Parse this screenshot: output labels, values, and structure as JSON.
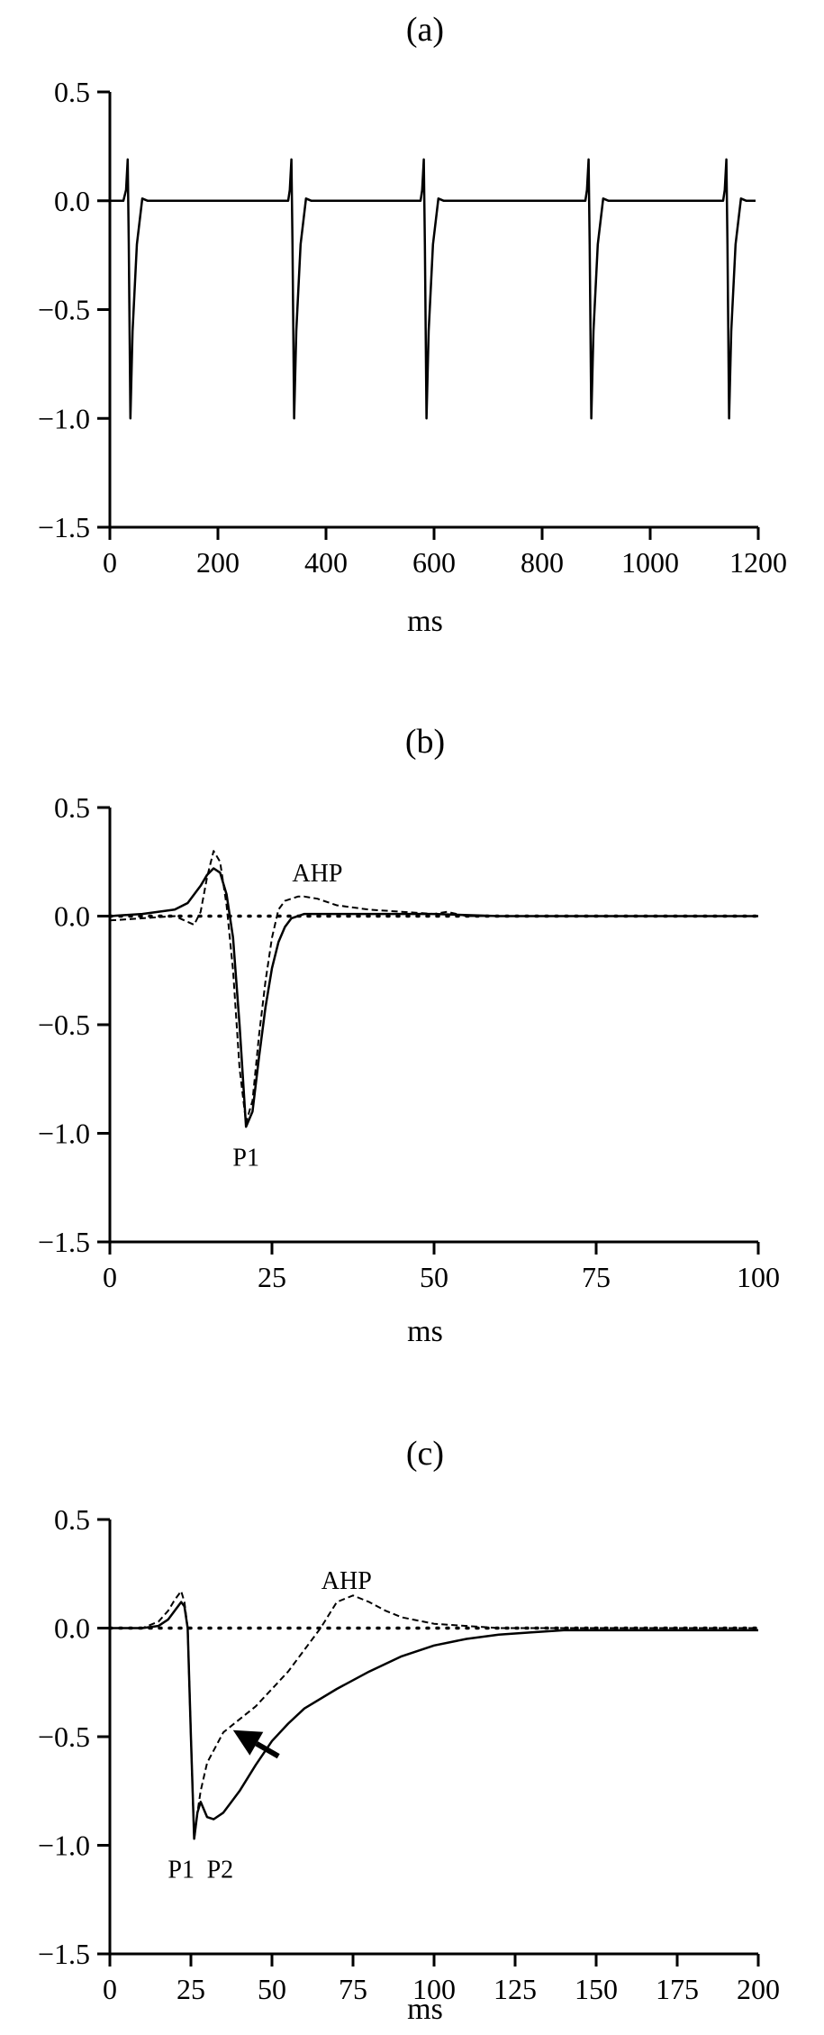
{
  "chart_data": [
    {
      "type": "line",
      "panel_label": "(a)",
      "xlabel": "ms",
      "ylabel": "",
      "xlim": [
        0,
        1200
      ],
      "ylim": [
        -1.5,
        0.5
      ],
      "xticks": [
        0,
        200,
        400,
        600,
        800,
        1000,
        1200
      ],
      "xtick_labels": [
        "0",
        "200",
        "400",
        "600",
        "800",
        "1000",
        "1200"
      ],
      "yticks": [
        0.5,
        0.0,
        -0.5,
        -1.0,
        -1.5
      ],
      "ytick_labels": [
        "0.5",
        "0.0",
        "−0.5",
        "−1.0",
        "−1.5"
      ],
      "grid": false,
      "series": [
        {
          "style": "solid",
          "x": [
            0,
            25,
            30,
            33,
            35,
            38,
            42,
            50,
            60,
            70,
            330,
            333,
            336,
            338,
            341,
            345,
            353,
            363,
            373,
            575,
            578,
            581,
            583,
            586,
            590,
            598,
            608,
            618,
            880,
            883,
            886,
            888,
            891,
            895,
            903,
            913,
            923,
            1135,
            1138,
            1141,
            1143,
            1146,
            1150,
            1158,
            1168,
            1178,
            1195
          ],
          "y": [
            0,
            0,
            0.05,
            0.19,
            -0.2,
            -1.0,
            -0.6,
            -0.2,
            0.01,
            0,
            0,
            0.05,
            0.19,
            -0.2,
            -1.0,
            -0.6,
            -0.2,
            0.01,
            0,
            0,
            0.05,
            0.19,
            -0.2,
            -1.0,
            -0.6,
            -0.2,
            0.01,
            0,
            0,
            0.05,
            0.19,
            -0.2,
            -1.0,
            -0.6,
            -0.2,
            0.01,
            0,
            0,
            0.05,
            0.19,
            -0.2,
            -1.0,
            -0.6,
            -0.2,
            0.01,
            0,
            0
          ]
        }
      ],
      "annotations": []
    },
    {
      "type": "line",
      "panel_label": "(b)",
      "xlabel": "ms",
      "ylabel": "",
      "xlim": [
        0,
        100
      ],
      "ylim": [
        -1.5,
        0.5
      ],
      "xticks": [
        0,
        25,
        50,
        75,
        100
      ],
      "xtick_labels": [
        "0",
        "25",
        "50",
        "75",
        "100"
      ],
      "yticks": [
        0.5,
        0.0,
        -0.5,
        -1.0,
        -1.5
      ],
      "ytick_labels": [
        "0.5",
        "0.0",
        "−0.5",
        "−1.0",
        "−1.5"
      ],
      "grid": false,
      "series": [
        {
          "style": "solid",
          "x": [
            0,
            5,
            10,
            12,
            14,
            15,
            16,
            17,
            18,
            19,
            20,
            21,
            22,
            23,
            24,
            25,
            26,
            27,
            28,
            30,
            35,
            40,
            50,
            60,
            80,
            100
          ],
          "y": [
            0,
            0.01,
            0.03,
            0.06,
            0.14,
            0.19,
            0.22,
            0.2,
            0.1,
            -0.1,
            -0.5,
            -0.97,
            -0.9,
            -0.65,
            -0.42,
            -0.24,
            -0.12,
            -0.05,
            -0.01,
            0.01,
            0.01,
            0.01,
            0.01,
            0,
            0,
            0
          ]
        },
        {
          "style": "dashed",
          "x": [
            0,
            5,
            10,
            13,
            14,
            15,
            16,
            17,
            18,
            19,
            20,
            21,
            22,
            23,
            24,
            25,
            26,
            27,
            28,
            29,
            30,
            32,
            35,
            40,
            45,
            50,
            52,
            55,
            60,
            80,
            100
          ],
          "y": [
            -0.02,
            -0.01,
            0,
            -0.04,
            0.02,
            0.18,
            0.3,
            0.25,
            0.05,
            -0.25,
            -0.7,
            -0.95,
            -0.85,
            -0.55,
            -0.3,
            -0.1,
            0.03,
            0.07,
            0.08,
            0.09,
            0.09,
            0.08,
            0.05,
            0.03,
            0.02,
            0.01,
            0.02,
            0,
            0,
            0,
            0
          ]
        },
        {
          "style": "dotted",
          "x": [
            0,
            100
          ],
          "y": [
            0,
            0
          ]
        }
      ],
      "annotations": [
        {
          "text": "AHP",
          "x": 32,
          "y": 0.16
        },
        {
          "text": "P1",
          "x": 21,
          "y": -1.15
        }
      ]
    },
    {
      "type": "line",
      "panel_label": "(c)",
      "xlabel": "ms",
      "ylabel": "",
      "xlim": [
        0,
        200
      ],
      "ylim": [
        -1.5,
        0.5
      ],
      "xticks": [
        0,
        25,
        50,
        75,
        100,
        125,
        150,
        175,
        200
      ],
      "xtick_labels": [
        "0",
        "25",
        "50",
        "75",
        "100",
        "125",
        "150",
        "175",
        "200"
      ],
      "yticks": [
        0.5,
        0.0,
        -0.5,
        -1.0,
        -1.5
      ],
      "ytick_labels": [
        "0.5",
        "0.0",
        "−0.5",
        "−1.0",
        "−1.5"
      ],
      "grid": false,
      "series": [
        {
          "style": "solid",
          "x": [
            0,
            10,
            15,
            18,
            20,
            22,
            23,
            24,
            25,
            26,
            27,
            28,
            30,
            32,
            35,
            40,
            45,
            50,
            55,
            60,
            70,
            80,
            90,
            100,
            110,
            120,
            130,
            140,
            150,
            175,
            200
          ],
          "y": [
            0,
            0,
            0.01,
            0.04,
            0.08,
            0.12,
            0.1,
            0.0,
            -0.5,
            -0.97,
            -0.85,
            -0.8,
            -0.87,
            -0.88,
            -0.85,
            -0.75,
            -0.63,
            -0.52,
            -0.44,
            -0.37,
            -0.28,
            -0.2,
            -0.13,
            -0.08,
            -0.05,
            -0.03,
            -0.02,
            -0.01,
            -0.01,
            -0.01,
            -0.01
          ]
        },
        {
          "style": "dashed",
          "x": [
            0,
            10,
            15,
            18,
            20,
            22,
            23,
            24,
            25,
            26,
            27,
            28,
            30,
            35,
            40,
            45,
            50,
            55,
            60,
            65,
            70,
            75,
            80,
            85,
            90,
            100,
            110,
            120,
            130,
            150,
            200
          ],
          "y": [
            0,
            0,
            0.03,
            0.08,
            0.13,
            0.17,
            0.12,
            0.0,
            -0.5,
            -0.97,
            -0.85,
            -0.75,
            -0.62,
            -0.48,
            -0.42,
            -0.36,
            -0.28,
            -0.2,
            -0.1,
            0.0,
            0.12,
            0.15,
            0.12,
            0.08,
            0.05,
            0.02,
            0.01,
            0,
            0,
            0,
            0
          ]
        },
        {
          "style": "dotted",
          "x": [
            0,
            200
          ],
          "y": [
            0,
            0
          ]
        }
      ],
      "annotations": [
        {
          "text": "AHP",
          "x": 73,
          "y": 0.18
        },
        {
          "text": "P1",
          "x": 22,
          "y": -1.15
        },
        {
          "text": "P2",
          "x": 34,
          "y": -1.15
        }
      ],
      "arrow": {
        "from": [
          52,
          -0.59
        ],
        "to": [
          38,
          -0.47
        ]
      }
    }
  ]
}
